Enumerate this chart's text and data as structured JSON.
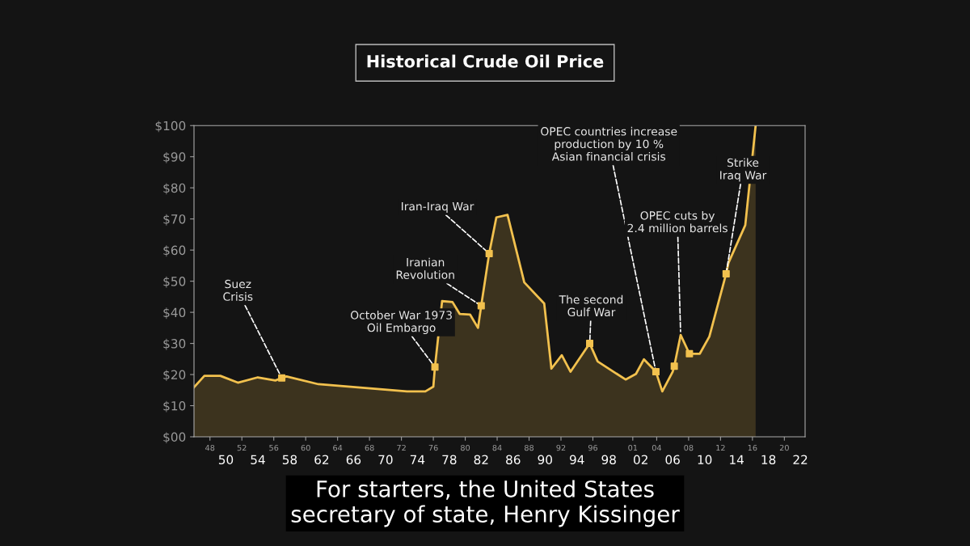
{
  "chart_data": {
    "type": "area",
    "title": "Historical Crude Oil Price",
    "xlim": [
      1946,
      2022.6
    ],
    "ylim": [
      0,
      100
    ],
    "yticks": [
      {
        "value": 0,
        "label": "$00"
      },
      {
        "value": 10,
        "label": "$10"
      },
      {
        "value": 20,
        "label": "$20"
      },
      {
        "value": 30,
        "label": "$30"
      },
      {
        "value": 40,
        "label": "$40"
      },
      {
        "value": 50,
        "label": "$50"
      },
      {
        "value": 60,
        "label": "$60"
      },
      {
        "value": 70,
        "label": "$70"
      },
      {
        "value": 80,
        "label": "$80"
      },
      {
        "value": 90,
        "label": "$90"
      },
      {
        "value": 100,
        "label": "$100"
      }
    ],
    "xticks": [
      {
        "value": 1948,
        "label": "48"
      },
      {
        "value": 1952,
        "label": "52"
      },
      {
        "value": 1956,
        "label": "56"
      },
      {
        "value": 1960,
        "label": "60"
      },
      {
        "value": 1964,
        "label": "64"
      },
      {
        "value": 1968,
        "label": "68"
      },
      {
        "value": 1972,
        "label": "72"
      },
      {
        "value": 1976,
        "label": "76"
      },
      {
        "value": 1980,
        "label": "80"
      },
      {
        "value": 1984,
        "label": "84"
      },
      {
        "value": 1988,
        "label": "88"
      },
      {
        "value": 1992,
        "label": "92"
      },
      {
        "value": 1996,
        "label": "96"
      },
      {
        "value": 2001,
        "label": "01"
      },
      {
        "value": 2004,
        "label": "04"
      },
      {
        "value": 2008,
        "label": "08"
      },
      {
        "value": 2012,
        "label": "12"
      },
      {
        "value": 2016,
        "label": "16"
      },
      {
        "value": 2020,
        "label": "20"
      }
    ],
    "x2lim": [
      1946,
      2022.6
    ],
    "x2ticks": [
      {
        "value": 1950,
        "label": "50"
      },
      {
        "value": 1954,
        "label": "54"
      },
      {
        "value": 1958,
        "label": "58"
      },
      {
        "value": 1962,
        "label": "62"
      },
      {
        "value": 1966,
        "label": "66"
      },
      {
        "value": 1970,
        "label": "70"
      },
      {
        "value": 1974,
        "label": "74"
      },
      {
        "value": 1978,
        "label": "78"
      },
      {
        "value": 1982,
        "label": "82"
      },
      {
        "value": 1986,
        "label": "86"
      },
      {
        "value": 1990,
        "label": "90"
      },
      {
        "value": 1994,
        "label": "94"
      },
      {
        "value": 1998,
        "label": "98"
      },
      {
        "value": 2002,
        "label": "02"
      },
      {
        "value": 2006,
        "label": "06"
      },
      {
        "value": 2010,
        "label": "10"
      },
      {
        "value": 2014,
        "label": "14"
      },
      {
        "value": 2018,
        "label": "18"
      },
      {
        "value": 2022,
        "label": "22"
      }
    ],
    "grid": false,
    "legend": false,
    "series": [
      {
        "color": "#f2c14e",
        "marker": "none",
        "x": [
          1946.0,
          1947.3,
          1949.3,
          1951.5,
          1954.0,
          1956.2,
          1957.0,
          1957.6,
          1961.6,
          1972.7,
          1975.0,
          1976.0,
          1976.2,
          1977.1,
          1978.4,
          1979.3,
          1980.6,
          1981.6,
          1982.0,
          1983.0,
          1983.9,
          1985.3,
          1987.4,
          1989.9,
          1990.8,
          1992.1,
          1993.2,
          1995.6,
          1996.6,
          2000.1,
          2001.4,
          2002.4,
          2003.9,
          2004.7,
          2006.0,
          2006.2,
          2007.0,
          2008.1,
          2009.4,
          2010.6,
          2012.7,
          2013.0,
          2015.1,
          2016.4
        ],
        "values": [
          15.9,
          19.6,
          19.6,
          17.4,
          19.1,
          18.1,
          18.9,
          19.4,
          16.9,
          14.6,
          14.6,
          16.1,
          22.4,
          43.6,
          43.3,
          39.5,
          39.3,
          35.0,
          42.1,
          58.9,
          70.5,
          71.3,
          49.6,
          42.8,
          21.9,
          26.2,
          20.9,
          30.0,
          24.2,
          18.4,
          20.2,
          24.9,
          20.9,
          14.6,
          20.9,
          22.7,
          32.7,
          26.7,
          26.7,
          32.2,
          52.4,
          55.9,
          68.0,
          100
        ]
      },
      {
        "type": "scatter",
        "color": "#f2c14e",
        "marker": "square",
        "x": [
          1957.0,
          1976.2,
          1982.0,
          1983.0,
          1995.6,
          2003.9,
          2006.2,
          2008.1,
          2012.7
        ],
        "values": [
          18.9,
          22.4,
          42.1,
          58.9,
          30.0,
          20.9,
          22.7,
          26.7,
          52.4
        ]
      }
    ],
    "annotations": [
      {
        "text": "Suez\nCrisis",
        "x": 1957.0,
        "y": 18.9
      },
      {
        "text": "October War 1973\nOil Embargo",
        "x": 1976.2,
        "y": 22.4
      },
      {
        "text": "Iranian\nRevolution",
        "x": 1982.0,
        "y": 42.1
      },
      {
        "text": "Iran-Iraq War",
        "x": 1983.0,
        "y": 58.9
      },
      {
        "text": "OPEC countries increase\nproduction by 10 %\nAsian financial crisis",
        "x": 2003.9,
        "y": 20.9
      },
      {
        "text": "The second\nGulf War",
        "x": 1995.6,
        "y": 30.0
      },
      {
        "text": "OPEC cuts by\n2.4 million barrels",
        "x": 2007.0,
        "y": 32.7
      },
      {
        "text": "Strike\nIraq War",
        "x": 2012.7,
        "y": 52.4
      },
      "For starters, the United States\nsecretary of state, Henry Kissinger"
    ]
  }
}
